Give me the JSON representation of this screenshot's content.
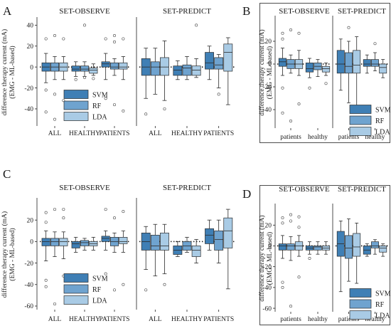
{
  "colors": {
    "SVM": "#3f7fb5",
    "RF": "#6fa3cf",
    "LDA": "#a9cbe5",
    "stroke": "#2a2a2a"
  },
  "chart_data": [
    {
      "panel": "A",
      "type": "box",
      "ylabel": "difference therapy current (mA)\n(EMG - ML-based)",
      "ylim": [
        -55,
        45
      ],
      "yticks": [
        -40,
        -20,
        0,
        20,
        40
      ],
      "subplots": [
        {
          "title": "SET-OBSERVE",
          "categories": [
            "ALL",
            "HEALTHY",
            "PATIENTS"
          ],
          "legend": {
            "entries": [
              "SVM",
              "RF",
              "LDA"
            ],
            "placement": "lower-center"
          },
          "boxes": {
            "ALL": {
              "SVM": {
                "whislo": -15,
                "q1": -4,
                "med": 0,
                "q3": 4,
                "whishi": 13,
                "fliers": [
                  27,
                  -22,
                  -43
                ]
              },
              "RF": {
                "whislo": -12,
                "q1": -4,
                "med": 0,
                "q3": 4,
                "whishi": 10,
                "fliers": [
                  30,
                  -26,
                  -50
                ]
              },
              "LDA": {
                "whislo": -12,
                "q1": -4,
                "med": 0,
                "q3": 4,
                "whishi": 10,
                "fliers": [
                  27,
                  -32
                ]
              }
            },
            "HEALTHY": {
              "SVM": {
                "whislo": -9,
                "q1": -4,
                "med": -2,
                "q3": 1,
                "whishi": 5,
                "fliers": [
                  -12
                ]
              },
              "RF": {
                "whislo": -9,
                "q1": -4,
                "med": -2,
                "q3": 1,
                "whishi": 5,
                "fliers": [
                  40,
                  -10
                ]
              },
              "LDA": {
                "whislo": -8,
                "q1": -6,
                "med": -3,
                "q3": -1,
                "whishi": 3,
                "fliers": [
                  -11
                ]
              }
            },
            "PATIENTS": {
              "SVM": {
                "whislo": -12,
                "q1": 0,
                "med": 3,
                "q3": 5,
                "whishi": 13,
                "fliers": [
                  27,
                  -30
                ]
              },
              "RF": {
                "whislo": -8,
                "q1": -2,
                "med": 0,
                "q3": 4,
                "whishi": 8,
                "fliers": [
                  30,
                  24,
                  -36
                ]
              },
              "LDA": {
                "whislo": -12,
                "q1": -2,
                "med": 0,
                "q3": 4,
                "whishi": 10,
                "fliers": [
                  27,
                  -42
                ]
              }
            }
          }
        },
        {
          "title": "SET-PREDICT",
          "categories": [
            "ALL",
            "HEALTHY",
            "PATIENTS"
          ],
          "boxes": {
            "ALL": {
              "SVM": {
                "whislo": -30,
                "q1": -8,
                "med": 0,
                "q3": 8,
                "whishi": 18,
                "fliers": [
                  -45
                ]
              },
              "RF": {
                "whislo": -26,
                "q1": -8,
                "med": 0,
                "q3": 5,
                "whishi": 18,
                "fliers": []
              },
              "LDA": {
                "whislo": -32,
                "q1": -8,
                "med": 0,
                "q3": 9,
                "whishi": 25,
                "fliers": [
                  -40
                ]
              }
            },
            "HEALTHY": {
              "SVM": {
                "whislo": -12,
                "q1": -8,
                "med": -3,
                "q3": 1,
                "whishi": 6,
                "fliers": []
              },
              "RF": {
                "whislo": -12,
                "q1": -8,
                "med": -1,
                "q3": 2,
                "whishi": 10,
                "fliers": []
              },
              "LDA": {
                "whislo": -10,
                "q1": -8,
                "med": -3,
                "q3": 1,
                "whishi": 8,
                "fliers": [
                  40
                ]
              }
            },
            "PATIENTS": {
              "SVM": {
                "whislo": -12,
                "q1": -2,
                "med": 4,
                "q3": 14,
                "whishi": 20,
                "fliers": []
              },
              "RF": {
                "whislo": -20,
                "q1": -2,
                "med": 2,
                "q3": 9,
                "whishi": 12,
                "fliers": [
                  -26
                ]
              },
              "LDA": {
                "whislo": -36,
                "q1": -4,
                "med": 14,
                "q3": 22,
                "whishi": 28,
                "fliers": []
              }
            }
          }
        }
      ]
    },
    {
      "panel": "B",
      "type": "box",
      "ylabel": "difference therapy current (mA)\n(EMG - ML-based)",
      "ylim": [
        -55,
        40
      ],
      "yticks": [
        -40,
        -20,
        0,
        20
      ],
      "subplots": [
        {
          "title": "SET-OBSERVE",
          "categories": [
            "patients",
            "healthy"
          ],
          "boxes": {
            "patients": {
              "SVM": {
                "whislo": -10,
                "q1": -2,
                "med": 2,
                "q3": 5,
                "whishi": 14,
                "fliers": [
                  27,
                  22,
                  -21,
                  -43
                ]
              },
              "RF": {
                "whislo": -8,
                "q1": -4,
                "med": 0,
                "q3": 4,
                "whishi": 8,
                "fliers": [
                  30,
                  -50
                ]
              },
              "LDA": {
                "whislo": -10,
                "q1": -4,
                "med": 0,
                "q3": 4,
                "whishi": 12,
                "fliers": [
                  27,
                  -35
                ]
              }
            },
            "healthy": {
              "SVM": {
                "whislo": -12,
                "q1": -7,
                "med": -4,
                "q3": 1,
                "whishi": 5,
                "fliers": [
                  -21
                ]
              },
              "RF": {
                "whislo": -11,
                "q1": -5,
                "med": -2,
                "q3": 1,
                "whishi": 4,
                "fliers": []
              },
              "LDA": {
                "whislo": -10,
                "q1": -7,
                "med": -4,
                "q3": -2,
                "whishi": 1,
                "fliers": [
                  -17
                ]
              }
            }
          }
        },
        {
          "title": "SET-PREDICT",
          "categories": [
            "patients",
            "healthy"
          ],
          "legend": {
            "entries": [
              "SVM",
              "RF",
              "LDA"
            ],
            "placement": "lower-center"
          },
          "boxes": {
            "patients": {
              "SVM": {
                "whislo": -23,
                "q1": -8,
                "med": 0,
                "q3": 12,
                "whishi": 22,
                "fliers": []
              },
              "RF": {
                "whislo": -34,
                "q1": -8,
                "med": -2,
                "q3": 10,
                "whishi": 20,
                "fliers": [
                  32
                ]
              },
              "LDA": {
                "whislo": -40,
                "q1": -8,
                "med": -1,
                "q3": 12,
                "whishi": 24,
                "fliers": []
              }
            },
            "healthy": {
              "SVM": {
                "whislo": -8,
                "q1": -2,
                "med": 0,
                "q3": 4,
                "whishi": 8,
                "fliers": []
              },
              "RF": {
                "whislo": -6,
                "q1": -2,
                "med": 0,
                "q3": 4,
                "whishi": 10,
                "fliers": [
                  18
                ]
              },
              "LDA": {
                "whislo": -12,
                "q1": -8,
                "med": -3,
                "q3": 0,
                "whishi": 4,
                "fliers": []
              }
            }
          }
        }
      ]
    },
    {
      "panel": "C",
      "type": "box",
      "ylabel": "difference therapy current (mA)\n(EMG - ML-based)",
      "ylim": [
        -62,
        38
      ],
      "yticks": [
        -60,
        -40,
        -20,
        0,
        20
      ],
      "subplots": [
        {
          "title": "SET-OBSERVE",
          "categories": [
            "ALL",
            "HEALTHY",
            "PATIENTS"
          ],
          "legend": {
            "entries": [
              "SVM",
              "RF",
              "LDA"
            ],
            "placement": "lower-center"
          },
          "boxes": {
            "ALL": {
              "SVM": {
                "whislo": -18,
                "q1": -4,
                "med": 0,
                "q3": 3,
                "whishi": 10,
                "fliers": [
                  27,
                  18,
                  -36,
                  -42
                ]
              },
              "RF": {
                "whislo": -14,
                "q1": -4,
                "med": 0,
                "q3": 3,
                "whishi": 9,
                "fliers": [
                  30,
                  -58
                ]
              },
              "LDA": {
                "whislo": -16,
                "q1": -4,
                "med": 0,
                "q3": 3,
                "whishi": 9,
                "fliers": [
                  30,
                  22,
                  -32
                ]
              }
            },
            "HEALTHY": {
              "SVM": {
                "whislo": -10,
                "q1": -6,
                "med": -2,
                "q3": 0,
                "whishi": 4,
                "fliers": []
              },
              "RF": {
                "whislo": -8,
                "q1": -4,
                "med": -1,
                "q3": 1,
                "whishi": 3,
                "fliers": []
              },
              "LDA": {
                "whislo": -8,
                "q1": -4,
                "med": -2,
                "q3": 0,
                "whishi": 4,
                "fliers": []
              }
            },
            "PATIENTS": {
              "SVM": {
                "whislo": -8,
                "q1": 0,
                "med": 3,
                "q3": 5,
                "whishi": 10,
                "fliers": [
                  30,
                  -30
                ]
              },
              "RF": {
                "whislo": -10,
                "q1": -4,
                "med": 0,
                "q3": 4,
                "whishi": 8,
                "fliers": [
                  22,
                  -45
                ]
              },
              "LDA": {
                "whislo": -10,
                "q1": -2,
                "med": 0,
                "q3": 4,
                "whishi": 10,
                "fliers": [
                  28,
                  -40
                ]
              }
            }
          }
        },
        {
          "title": "SET-PREDICT",
          "categories": [
            "ALL",
            "HEALTHY",
            "PATIENTS"
          ],
          "boxes": {
            "ALL": {
              "SVM": {
                "whislo": -26,
                "q1": -8,
                "med": 0,
                "q3": 8,
                "whishi": 14,
                "fliers": [
                  -45
                ]
              },
              "RF": {
                "whislo": -32,
                "q1": -8,
                "med": -4,
                "q3": 6,
                "whishi": 16,
                "fliers": []
              },
              "LDA": {
                "whislo": -30,
                "q1": -8,
                "med": -4,
                "q3": 8,
                "whishi": 16,
                "fliers": [
                  -40
                ]
              }
            },
            "HEALTHY": {
              "SVM": {
                "whislo": -14,
                "q1": -12,
                "med": -8,
                "q3": -4,
                "whishi": 0,
                "fliers": []
              },
              "RF": {
                "whislo": -10,
                "q1": -8,
                "med": -4,
                "q3": 0,
                "whishi": 4,
                "fliers": []
              },
              "LDA": {
                "whislo": -20,
                "q1": -14,
                "med": -8,
                "q3": -4,
                "whishi": 2,
                "fliers": []
              }
            },
            "PATIENTS": {
              "SVM": {
                "whislo": -8,
                "q1": -2,
                "med": 6,
                "q3": 12,
                "whishi": 20,
                "fliers": []
              },
              "RF": {
                "whislo": -20,
                "q1": -8,
                "med": 2,
                "q3": 10,
                "whishi": 20,
                "fliers": []
              },
              "LDA": {
                "whislo": -44,
                "q1": -6,
                "med": 10,
                "q3": 22,
                "whishi": 30,
                "fliers": []
              }
            }
          }
        }
      ]
    },
    {
      "panel": "D",
      "type": "box",
      "ylabel": "difference therapy current (mA)\n(EMG - ML-based)",
      "ylim": [
        -62,
        38
      ],
      "yticks": [
        -60,
        -40,
        -20,
        0,
        20
      ],
      "subplots": [
        {
          "title": "SET-OBSERVE",
          "categories": [
            "patients",
            "healthy"
          ],
          "boxes": {
            "patients": {
              "SVM": {
                "whislo": -12,
                "q1": -4,
                "med": 0,
                "q3": 2,
                "whishi": 10,
                "fliers": [
                  27,
                  22,
                  -35,
                  -40
                ]
              },
              "RF": {
                "whislo": -14,
                "q1": -4,
                "med": 0,
                "q3": 2,
                "whishi": 9,
                "fliers": [
                  30,
                  24,
                  -58
                ]
              },
              "LDA": {
                "whislo": -10,
                "q1": -4,
                "med": 0,
                "q3": 4,
                "whishi": 10,
                "fliers": [
                  28,
                  18,
                  -30
                ]
              }
            },
            "healthy": {
              "SVM": {
                "whislo": -8,
                "q1": -4,
                "med": -2,
                "q3": 0,
                "whishi": 4,
                "fliers": [
                  -12
                ]
              },
              "RF": {
                "whislo": -8,
                "q1": -4,
                "med": -1,
                "q3": 0,
                "whishi": 4,
                "fliers": []
              },
              "LDA": {
                "whislo": -8,
                "q1": -4,
                "med": -2,
                "q3": 0,
                "whishi": 4,
                "fliers": []
              }
            }
          }
        },
        {
          "title": "SET-PREDICT",
          "categories": [
            "patients",
            "healthy"
          ],
          "legend": {
            "entries": [
              "SVM",
              "RF",
              "LDA"
            ],
            "placement": "lower-center"
          },
          "boxes": {
            "patients": {
              "SVM": {
                "whislo": -44,
                "q1": -10,
                "med": 2,
                "q3": 14,
                "whishi": 24,
                "fliers": []
              },
              "RF": {
                "whislo": -34,
                "q1": -12,
                "med": -2,
                "q3": 10,
                "whishi": 26,
                "fliers": []
              },
              "LDA": {
                "whislo": -36,
                "q1": -10,
                "med": -1,
                "q3": 12,
                "whishi": 22,
                "fliers": []
              }
            },
            "healthy": {
              "SVM": {
                "whislo": -10,
                "q1": -8,
                "med": -4,
                "q3": 0,
                "whishi": 2,
                "fliers": []
              },
              "RF": {
                "whislo": -8,
                "q1": -2,
                "med": 0,
                "q3": 4,
                "whishi": 6,
                "fliers": []
              },
              "LDA": {
                "whislo": -10,
                "q1": -6,
                "med": -2,
                "q3": 0,
                "whishi": 2,
                "fliers": []
              }
            }
          }
        }
      ]
    }
  ]
}
